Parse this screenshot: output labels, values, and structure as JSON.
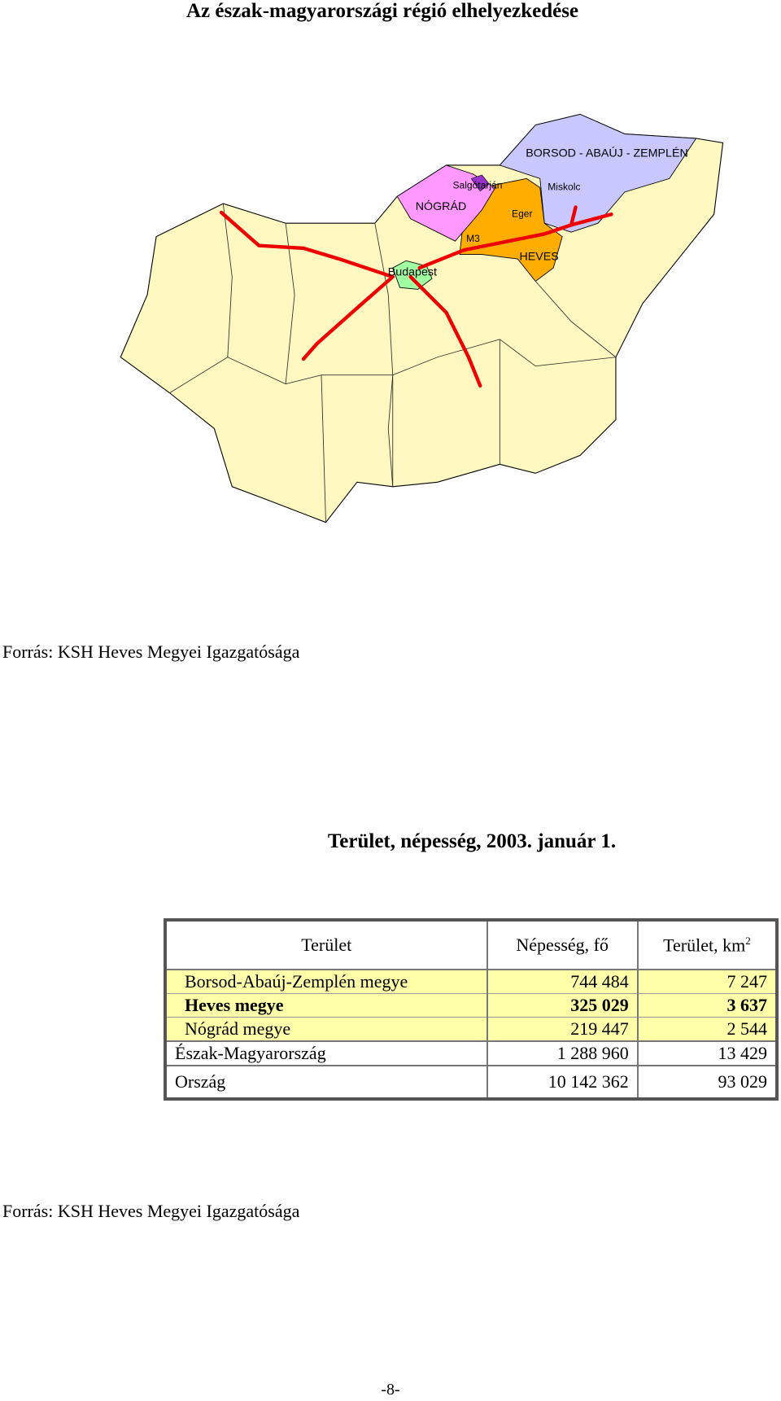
{
  "title": "Az észak-magyarországi régió elhelyezkedése",
  "map": {
    "labels": {
      "borsod": "BORSOD - ABAÚJ - ZEMPLÉN",
      "salgotarjan": "Salgótarján",
      "miskolc": "Miskolc",
      "nograd": "NÓGRÁD",
      "eger": "Eger",
      "m3": "M3",
      "heves": "HEVES",
      "budapest": "Budapest"
    }
  },
  "source_1": "Forrás: KSH Heves Megyei Igazgatósága",
  "table": {
    "title": "Terület, népesség, 2003. január 1.",
    "header": [
      "Terület",
      "Népesség, fő",
      {
        "text": "Terület, km",
        "sup": "2"
      }
    ],
    "rows": [
      [
        "Borsod-Abaúj-Zemplén megye",
        "744 484",
        "7 247"
      ],
      [
        "Heves megye",
        "325 029",
        "3 637"
      ],
      [
        "Nógrád megye",
        "219 447",
        "2 544"
      ],
      [
        "Észak-Magyarország",
        "1 288 960",
        "13 429"
      ],
      [
        "Ország",
        "10 142 362",
        "93 029"
      ]
    ]
  },
  "source_2": "Forrás: KSH Heves Megyei Igazgatósága",
  "page_number": "-8-"
}
